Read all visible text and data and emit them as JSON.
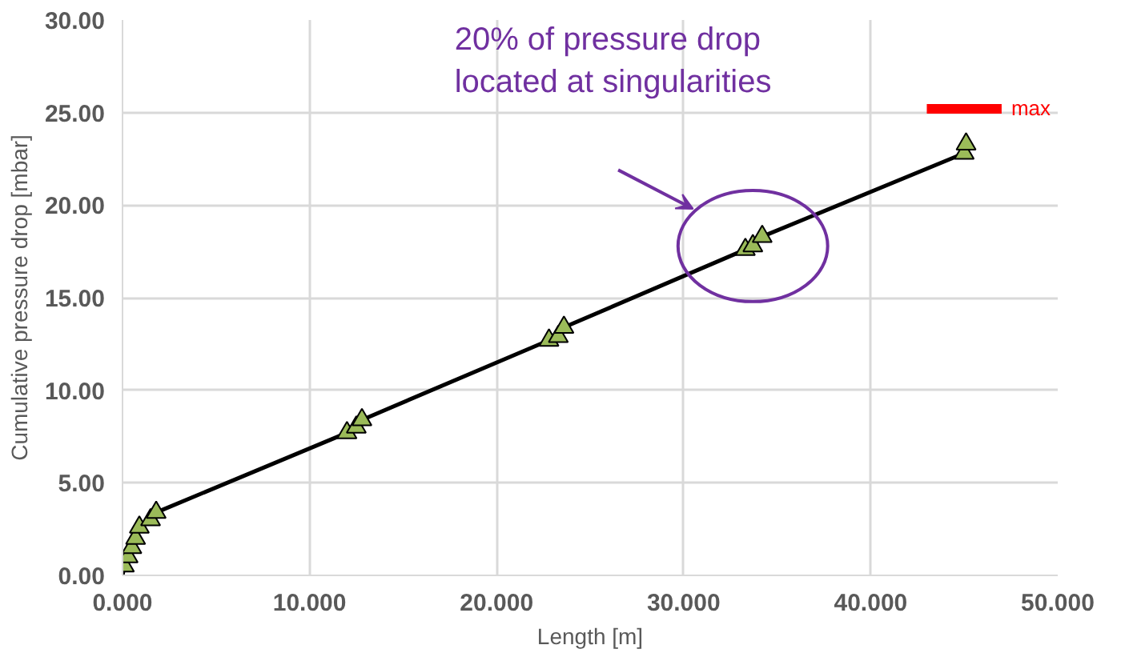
{
  "chart_data": {
    "type": "scatter",
    "xlabel": "Length [m]",
    "ylabel": "Cumulative pressure drop [mbar]",
    "series": [
      {
        "type": "line",
        "color": "#000000",
        "marker": "none",
        "x": [
          0.0,
          0.1,
          0.3,
          0.5,
          0.7,
          0.9,
          1.5,
          1.8,
          12.0,
          12.5,
          12.8,
          22.8,
          23.3,
          23.6,
          33.3,
          33.7,
          34.2,
          45.0,
          45.1
        ],
        "values": [
          0.0,
          0.5,
          1.0,
          1.5,
          2.0,
          2.6,
          3.0,
          3.4,
          7.7,
          8.0,
          8.4,
          12.7,
          12.9,
          13.4,
          17.6,
          17.8,
          18.3,
          22.8,
          23.3
        ]
      },
      {
        "color": "#9bbb59",
        "marker": "triangle",
        "x": [
          0.1,
          0.3,
          0.5,
          0.7,
          0.9,
          1.5,
          1.8,
          12.0,
          12.5,
          12.8,
          22.8,
          23.3,
          23.6,
          33.3,
          33.7,
          34.2,
          45.0,
          45.1
        ],
        "values": [
          0.5,
          1.0,
          1.5,
          2.0,
          2.6,
          3.0,
          3.4,
          7.7,
          8.0,
          8.4,
          12.7,
          12.9,
          13.4,
          17.6,
          17.8,
          18.3,
          22.8,
          23.3
        ]
      },
      {
        "type": "line",
        "name": "max",
        "color": "#ff0000",
        "marker": "none",
        "x": [
          43.0,
          47.0
        ],
        "values": [
          25.2,
          25.2
        ]
      }
    ],
    "xlim": [
      0,
      50
    ],
    "ylim": [
      0,
      30
    ],
    "xticks": [
      {
        "value": 0,
        "label": "0.000"
      },
      {
        "value": 10,
        "label": "10.000"
      },
      {
        "value": 20,
        "label": "20.000"
      },
      {
        "value": 30,
        "label": "30.000"
      },
      {
        "value": 40,
        "label": "40.000"
      },
      {
        "value": 50,
        "label": "50.000"
      }
    ],
    "yticks": [
      {
        "value": 0,
        "label": "0.00"
      },
      {
        "value": 5,
        "label": "5.00"
      },
      {
        "value": 10,
        "label": "10.00"
      },
      {
        "value": 15,
        "label": "15.00"
      },
      {
        "value": 20,
        "label": "20.00"
      },
      {
        "value": 25,
        "label": "25.00"
      },
      {
        "value": 30,
        "label": "30.00"
      }
    ],
    "grid": true,
    "legend": false,
    "annotations": [
      "20% of pressure drop\nlocated at singularities"
    ]
  }
}
